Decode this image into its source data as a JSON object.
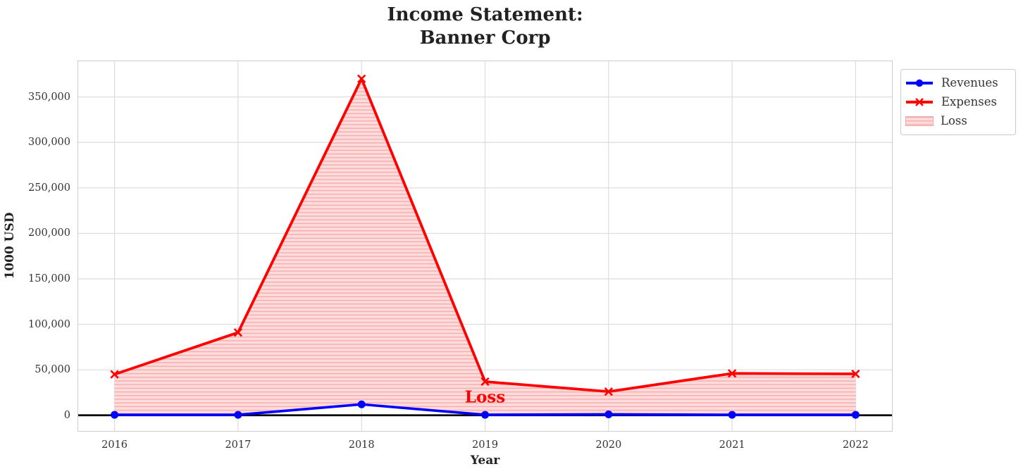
{
  "figure": {
    "title_line1": "Income Statement:",
    "title_line2": "Banner Corp"
  },
  "chart_data": {
    "type": "line",
    "title": "Income Statement: Banner Corp",
    "xlabel": "Year",
    "ylabel": "1000 USD",
    "x": [
      2016,
      2017,
      2018,
      2019,
      2020,
      2021,
      2022
    ],
    "xtick_labels": [
      "2016",
      "2017",
      "2018",
      "2019",
      "2020",
      "2021",
      "2022"
    ],
    "series": [
      {
        "name": "Revenues",
        "color": "#0000ff",
        "marker": "circle",
        "values": [
          500,
          500,
          12000,
          500,
          1000,
          500,
          500
        ]
      },
      {
        "name": "Expenses",
        "color": "#ff0000",
        "marker": "x",
        "values": [
          45000,
          91000,
          370000,
          37000,
          26000,
          46000,
          45500
        ]
      }
    ],
    "fill_between": {
      "label": "Loss",
      "fill_color": "#ffdcdc",
      "hatch_color": "#f6b0b0",
      "hatch": "horizontal"
    },
    "annotation": {
      "text": "Loss",
      "color": "#ff0000",
      "x": 2019,
      "y": 20000
    },
    "xlim": [
      2015.7,
      2022.3
    ],
    "ylim": [
      -18000,
      390000
    ],
    "yticks": [
      0,
      50000,
      100000,
      150000,
      200000,
      250000,
      300000,
      350000
    ],
    "ytick_labels": [
      "0",
      "50,000",
      "100,000",
      "150,000",
      "200,000",
      "250,000",
      "300,000",
      "350,000"
    ],
    "grid": true,
    "grid_color": "#dcdcdc",
    "zero_line": true,
    "zero_line_color": "#000000",
    "legend_position": "upper right outside"
  },
  "legend": {
    "items": [
      {
        "label": "Revenues"
      },
      {
        "label": "Expenses"
      },
      {
        "label": "Loss"
      }
    ]
  }
}
